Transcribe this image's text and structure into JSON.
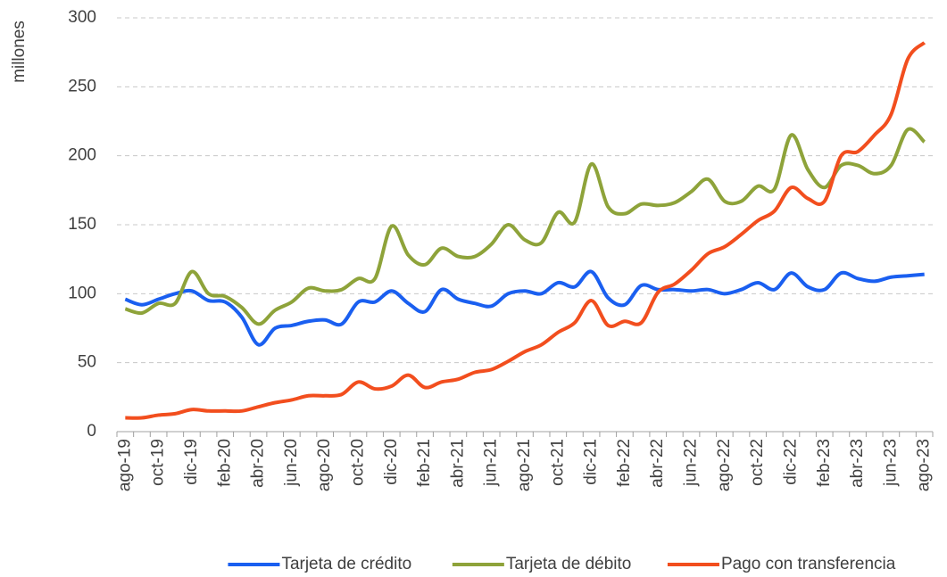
{
  "chart_data": {
    "type": "line",
    "y_axis_label": "millones",
    "categories": [
      "ago-19",
      null,
      "oct-19",
      null,
      "dic-19",
      null,
      "feb-20",
      null,
      "abr-20",
      null,
      "jun-20",
      null,
      "ago-20",
      null,
      "oct-20",
      null,
      "dic-20",
      null,
      "feb-21",
      null,
      "abr-21",
      null,
      "jun-21",
      null,
      "ago-21",
      null,
      "oct-21",
      null,
      "dic-21",
      null,
      "feb-22",
      null,
      "abr-22",
      null,
      "jun-22",
      null,
      "ago-22",
      null,
      "oct-22",
      null,
      "dic-22",
      null,
      "feb-23",
      null,
      "abr-23",
      null,
      "jun-23",
      null,
      "ago-23"
    ],
    "series": [
      {
        "name": "Tarjeta de crédito",
        "color": "#1a5ff0",
        "values": [
          96,
          92,
          96,
          100,
          102,
          95,
          94,
          83,
          63,
          75,
          77,
          80,
          81,
          78,
          94,
          94,
          102,
          93,
          87,
          103,
          96,
          93,
          91,
          100,
          102,
          100,
          108,
          105,
          116,
          97,
          92,
          106,
          103,
          103,
          102,
          103,
          100,
          103,
          108,
          103,
          115,
          105,
          103,
          115,
          111,
          109,
          112,
          113,
          114
        ]
      },
      {
        "name": "Tarjeta de débito",
        "color": "#8ea33a",
        "values": [
          89,
          86,
          93,
          93,
          116,
          100,
          98,
          90,
          78,
          88,
          94,
          104,
          102,
          103,
          111,
          111,
          149,
          128,
          121,
          133,
          127,
          127,
          136,
          150,
          139,
          137,
          159,
          152,
          194,
          163,
          158,
          165,
          164,
          166,
          174,
          183,
          167,
          167,
          178,
          176,
          215,
          190,
          177,
          193,
          193,
          187,
          193,
          219,
          210
        ]
      },
      {
        "name": "Pago con transferencia",
        "color": "#f24e1e",
        "values": [
          10,
          10,
          12,
          13,
          16,
          15,
          15,
          15,
          18,
          21,
          23,
          26,
          26,
          27,
          36,
          31,
          33,
          41,
          32,
          36,
          38,
          43,
          45,
          51,
          58,
          63,
          72,
          79,
          95,
          77,
          80,
          79,
          101,
          107,
          117,
          129,
          134,
          143,
          153,
          160,
          177,
          169,
          167,
          200,
          203,
          215,
          230,
          270,
          282
        ]
      }
    ],
    "ylim": [
      0,
      300
    ],
    "yticks": [
      0,
      50,
      100,
      150,
      200,
      250,
      300
    ],
    "grid": true,
    "legend": "bottom"
  }
}
